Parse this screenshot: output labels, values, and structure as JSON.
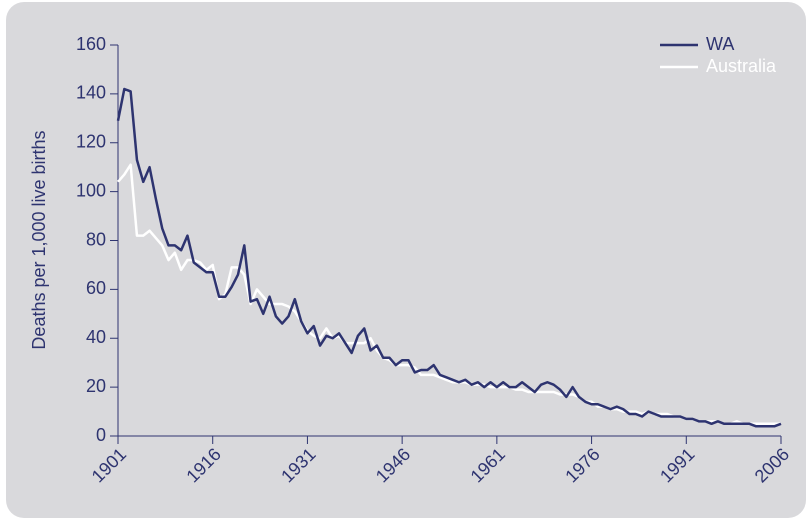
{
  "chart_data": {
    "type": "line",
    "y_label": "Deaths per 1,000 live births",
    "x": [
      1901,
      1902,
      1903,
      1904,
      1905,
      1906,
      1907,
      1908,
      1909,
      1910,
      1911,
      1912,
      1913,
      1914,
      1915,
      1916,
      1917,
      1918,
      1919,
      1920,
      1921,
      1922,
      1923,
      1924,
      1925,
      1926,
      1927,
      1928,
      1929,
      1930,
      1931,
      1932,
      1933,
      1934,
      1935,
      1936,
      1937,
      1938,
      1939,
      1940,
      1941,
      1942,
      1943,
      1944,
      1945,
      1946,
      1947,
      1948,
      1949,
      1950,
      1951,
      1952,
      1953,
      1954,
      1955,
      1956,
      1957,
      1958,
      1959,
      1960,
      1961,
      1962,
      1963,
      1964,
      1965,
      1966,
      1967,
      1968,
      1969,
      1970,
      1971,
      1972,
      1973,
      1974,
      1975,
      1976,
      1977,
      1978,
      1979,
      1980,
      1981,
      1982,
      1983,
      1984,
      1985,
      1986,
      1987,
      1988,
      1989,
      1990,
      1991,
      1992,
      1993,
      1994,
      1995,
      1996,
      1997,
      1998,
      1999,
      2000,
      2001,
      2002,
      2003,
      2004,
      2005,
      2006
    ],
    "series": [
      {
        "name": "WA",
        "color": "#2e3470",
        "values": [
          129,
          142,
          141,
          113,
          104,
          110,
          97,
          85,
          78,
          78,
          76,
          82,
          71,
          69,
          67,
          67,
          57,
          57,
          61,
          66,
          78,
          55,
          56,
          50,
          57,
          49,
          46,
          49,
          56,
          47,
          42,
          45,
          37,
          41,
          40,
          42,
          38,
          34,
          41,
          44,
          35,
          37,
          32,
          32,
          29,
          31,
          31,
          26,
          27,
          27,
          29,
          25,
          24,
          23,
          22,
          23,
          21,
          22,
          20,
          22,
          20,
          22,
          20,
          20,
          22,
          20,
          18,
          21,
          22,
          21,
          19,
          16,
          20,
          16,
          14,
          13,
          13,
          12,
          11,
          12,
          11,
          9,
          9,
          8,
          10,
          9,
          8,
          8,
          8,
          8,
          7,
          7,
          6,
          6,
          5,
          6,
          5,
          5,
          5,
          5,
          5,
          4,
          4,
          4,
          4,
          5
        ]
      },
      {
        "name": "Australia",
        "color": "#ffffff",
        "values": [
          104,
          107,
          111,
          82,
          82,
          84,
          81,
          78,
          72,
          75,
          68,
          72,
          72,
          71,
          68,
          70,
          56,
          58,
          69,
          69,
          66,
          54,
          60,
          57,
          54,
          54,
          54,
          53,
          51,
          47,
          43,
          41,
          40,
          44,
          40,
          41,
          38,
          38,
          38,
          38,
          40,
          35,
          32,
          31,
          29,
          29,
          29,
          28,
          25,
          25,
          25,
          24,
          23,
          22,
          22,
          22,
          21,
          21,
          21,
          20,
          20,
          20,
          20,
          19,
          19,
          18,
          18,
          18,
          18,
          18,
          17,
          17,
          17,
          16,
          14,
          14,
          12,
          12,
          11,
          11,
          10,
          10,
          10,
          9,
          10,
          9,
          9,
          9,
          8,
          8,
          7,
          7,
          6,
          6,
          6,
          6,
          5,
          5,
          6,
          5,
          5,
          5,
          5,
          5,
          5,
          5
        ]
      }
    ],
    "xlim": [
      1901,
      2006
    ],
    "xticks": [
      1901,
      1916,
      1931,
      1946,
      1961,
      1976,
      1991,
      2006
    ],
    "ylim": [
      0,
      160
    ],
    "yticks": [
      0,
      20,
      40,
      60,
      80,
      100,
      120,
      140,
      160
    ],
    "legend": "top-right"
  }
}
